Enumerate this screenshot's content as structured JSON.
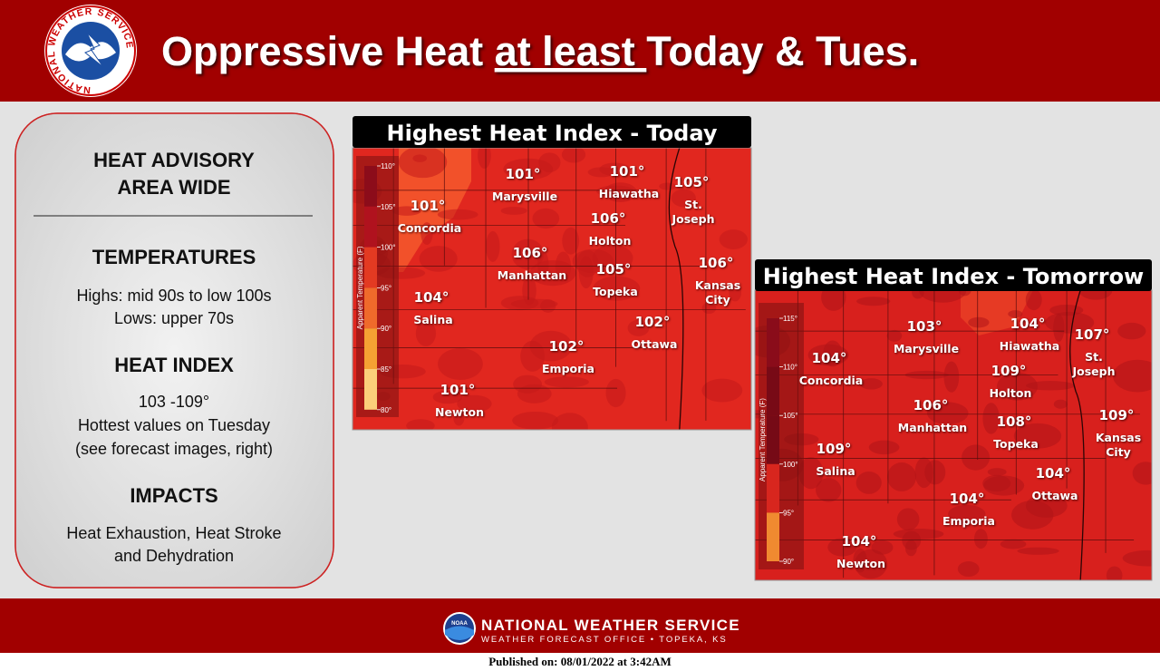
{
  "header": {
    "logo_text": "NATIONAL WEATHER SERVICE",
    "title_start": "Oppressive Heat ",
    "title_underlined": "at least ",
    "title_end": "Today & Tues."
  },
  "sidebar": {
    "advisory": [
      "HEAT ADVISORY",
      "AREA WIDE"
    ],
    "sections": [
      {
        "heading": "TEMPERATURES",
        "lines": [
          "Highs: mid 90s to low 100s",
          "Lows: upper 70s"
        ]
      },
      {
        "heading": "HEAT INDEX",
        "lines": [
          "103 -109°",
          "Hottest values on Tuesday",
          "(see forecast images, right)"
        ]
      },
      {
        "heading": "IMPACTS",
        "lines": [
          "Heat Exhaustion, Heat Stroke",
          "and Dehydration"
        ]
      }
    ]
  },
  "maps": [
    {
      "title": "Highest Heat Index - Today",
      "legend_label": "Apparent Temperature (F)",
      "legend_ticks": [
        "110°",
        "105°",
        "100°",
        "95°",
        "90°",
        "85°",
        "80°"
      ],
      "cities": [
        {
          "temp": "101°",
          "name": [
            "Concordia"
          ]
        },
        {
          "temp": "101°",
          "name": [
            "Marysville"
          ]
        },
        {
          "temp": "101°",
          "name": [
            "Hiawatha"
          ]
        },
        {
          "temp": "105°",
          "name": [
            "St.",
            "Joseph"
          ]
        },
        {
          "temp": "106°",
          "name": [
            "Holton"
          ]
        },
        {
          "temp": "106°",
          "name": [
            "Manhattan"
          ]
        },
        {
          "temp": "105°",
          "name": [
            "Topeka"
          ]
        },
        {
          "temp": "106°",
          "name": [
            "Kansas",
            "City"
          ]
        },
        {
          "temp": "104°",
          "name": [
            "Salina"
          ]
        },
        {
          "temp": "102°",
          "name": [
            "Emporia"
          ]
        },
        {
          "temp": "102°",
          "name": [
            "Ottawa"
          ]
        },
        {
          "temp": "101°",
          "name": [
            "Newton"
          ]
        }
      ]
    },
    {
      "title": "Highest Heat Index - Tomorrow",
      "legend_label": "Apparent Temperature (F)",
      "legend_ticks": [
        "115°",
        "110°",
        "105°",
        "100°",
        "95°",
        "90°"
      ],
      "cities": [
        {
          "temp": "104°",
          "name": [
            "Concordia"
          ]
        },
        {
          "temp": "103°",
          "name": [
            "Marysville"
          ]
        },
        {
          "temp": "104°",
          "name": [
            "Hiawatha"
          ]
        },
        {
          "temp": "107°",
          "name": [
            "St.",
            "Joseph"
          ]
        },
        {
          "temp": "109°",
          "name": [
            "Holton"
          ]
        },
        {
          "temp": "106°",
          "name": [
            "Manhattan"
          ]
        },
        {
          "temp": "108°",
          "name": [
            "Topeka"
          ]
        },
        {
          "temp": "109°",
          "name": [
            "Kansas",
            "City"
          ]
        },
        {
          "temp": "109°",
          "name": [
            "Salina"
          ]
        },
        {
          "temp": "104°",
          "name": [
            "Emporia"
          ]
        },
        {
          "temp": "104°",
          "name": [
            "Ottawa"
          ]
        },
        {
          "temp": "104°",
          "name": [
            "Newton"
          ]
        }
      ]
    }
  ],
  "footer": {
    "noaa_logo_text": "NOAA",
    "agency": "NATIONAL WEATHER SERVICE",
    "office": "WEATHER FORECAST OFFICE • TOPEKA, KS",
    "published": "Published on: 08/01/2022 at 3:42AM"
  }
}
